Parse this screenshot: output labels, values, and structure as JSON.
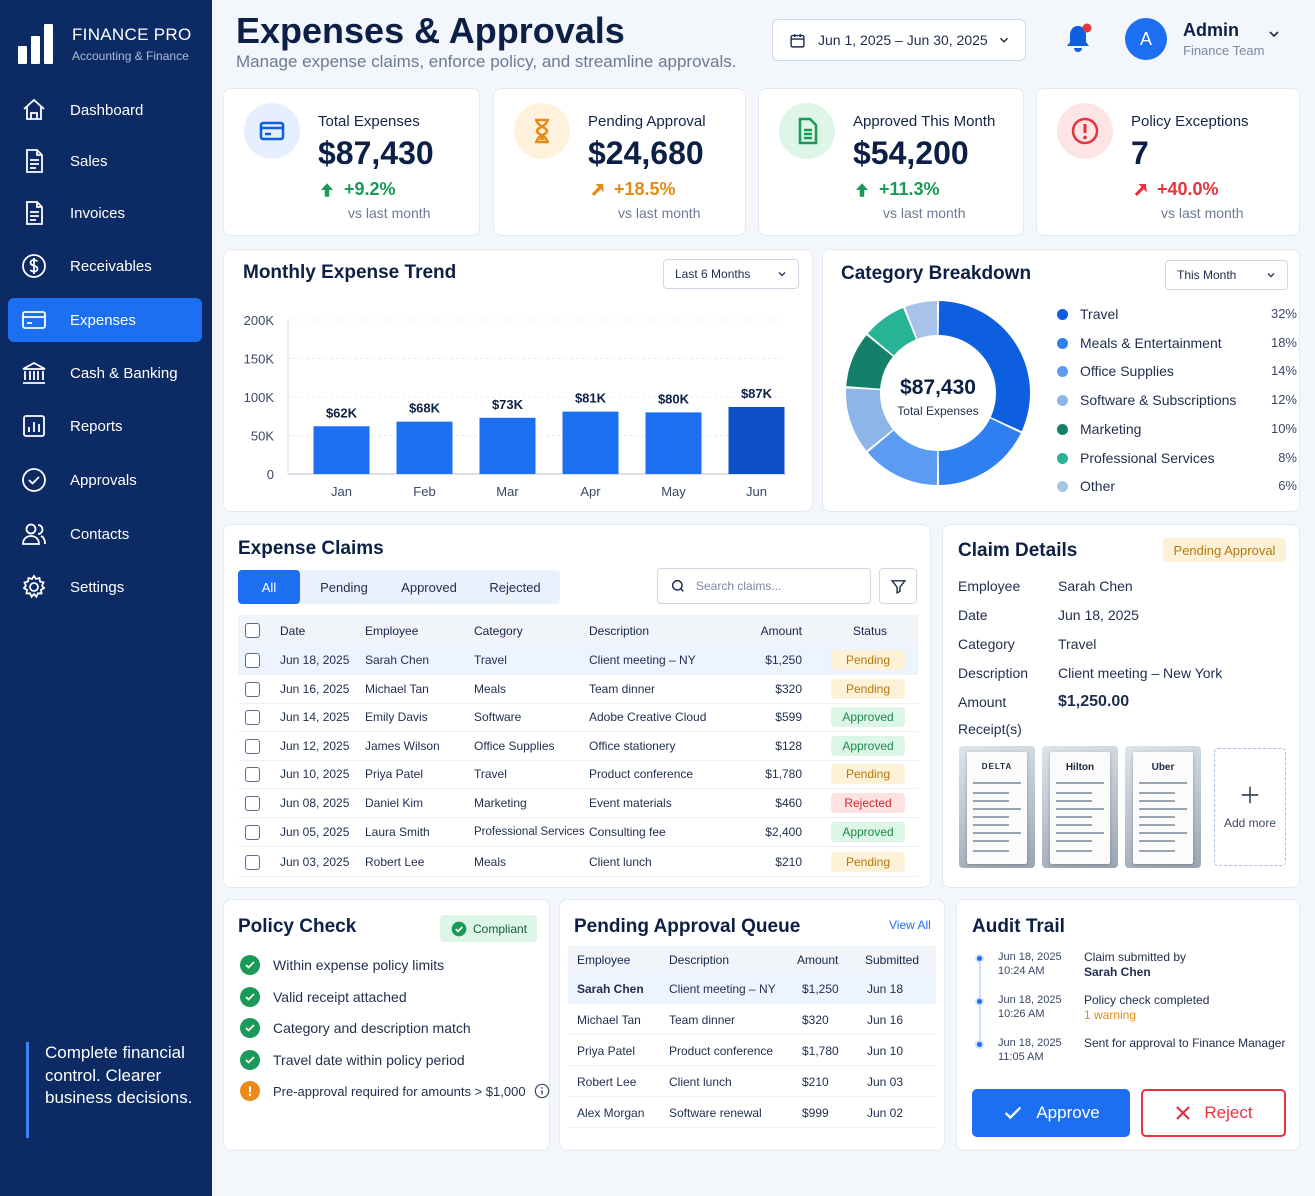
{
  "brand": {
    "name": "FINANCE PRO",
    "sub": "Accounting & Finance"
  },
  "nav": [
    {
      "label": "Dashboard",
      "icon": "home-icon"
    },
    {
      "label": "Sales",
      "icon": "document-icon"
    },
    {
      "label": "Invoices",
      "icon": "document-icon"
    },
    {
      "label": "Receivables",
      "icon": "dollar-circle-icon"
    },
    {
      "label": "Expenses",
      "icon": "credit-card-icon",
      "active": true
    },
    {
      "label": "Cash & Banking",
      "icon": "bank-icon"
    },
    {
      "label": "Reports",
      "icon": "bar-chart-icon"
    },
    {
      "label": "Approvals",
      "icon": "check-circle-icon"
    },
    {
      "label": "Contacts",
      "icon": "users-icon"
    },
    {
      "label": "Settings",
      "icon": "gear-icon"
    }
  ],
  "tagline": "Complete financial control. Clearer business decisions.",
  "header": {
    "title": "Expenses & Approvals",
    "subtitle": "Manage expense claims, enforce policy, and streamline approvals.",
    "date_range": "Jun 1, 2025 – Jun 30, 2025",
    "user_initial": "A",
    "user_name": "Admin",
    "user_role": "Finance Team"
  },
  "kpis": [
    {
      "label": "Total Expenses",
      "value": "$87,430",
      "change": "+9.2%",
      "vs": "vs last month",
      "color": "#1a9a56",
      "icon_bg": "#e6efff"
    },
    {
      "label": "Pending Approval",
      "value": "$24,680",
      "change": "+18.5%",
      "vs": "vs last month",
      "color": "#e58a12",
      "icon_bg": "#fff1dc"
    },
    {
      "label": "Approved This Month",
      "value": "$54,200",
      "change": "+11.3%",
      "vs": "vs last month",
      "color": "#1a9a56",
      "icon_bg": "#def6e8"
    },
    {
      "label": "Policy Exceptions",
      "value": "7",
      "change": "+40.0%",
      "vs": "vs last month",
      "color": "#e53340",
      "icon_bg": "#fde5e6"
    }
  ],
  "trend": {
    "title": "Monthly Expense Trend",
    "range": "Last 6 Months",
    "chart_data": {
      "type": "bar",
      "categories": [
        "Jan",
        "Feb",
        "Mar",
        "Apr",
        "May",
        "Jun"
      ],
      "values": [
        62,
        68,
        73,
        81,
        80,
        87
      ],
      "labels": [
        "$62K",
        "$68K",
        "$73K",
        "$81K",
        "$80K",
        "$87K"
      ],
      "yticks": [
        "200K",
        "150K",
        "100K",
        "50K",
        "0"
      ],
      "ylim": [
        0,
        200
      ]
    }
  },
  "breakdown": {
    "title": "Category Breakdown",
    "range": "This Month",
    "center_value": "$87,430",
    "center_label": "Total Expenses",
    "chart_data": {
      "type": "pie",
      "categories": [
        "Travel",
        "Meals & Entertainment",
        "Office Supplies",
        "Software & Subscriptions",
        "Marketing",
        "Professional Services",
        "Other"
      ],
      "values": [
        32,
        18,
        14,
        12,
        10,
        8,
        6
      ],
      "pct_labels": [
        "32%",
        "18%",
        "14%",
        "12%",
        "10%",
        "8%",
        "6%"
      ],
      "colors": [
        "#0d5fe0",
        "#2f7ff0",
        "#5b9cf2",
        "#8eb5e8",
        "#15806a",
        "#27b396",
        "#a8c3e8"
      ]
    }
  },
  "claims": {
    "title": "Expense Claims",
    "tabs": [
      "All",
      "Pending",
      "Approved",
      "Rejected"
    ],
    "search_placeholder": "Search claims...",
    "columns": [
      "Date",
      "Employee",
      "Category",
      "Description",
      "Amount",
      "Status"
    ],
    "rows": [
      {
        "date": "Jun 18, 2025",
        "employee": "Sarah Chen",
        "category": "Travel",
        "description": "Client meeting – NY",
        "amount": "$1,250",
        "status": "Pending"
      },
      {
        "date": "Jun 16, 2025",
        "employee": "Michael Tan",
        "category": "Meals",
        "description": "Team dinner",
        "amount": "$320",
        "status": "Pending"
      },
      {
        "date": "Jun 14, 2025",
        "employee": "Emily Davis",
        "category": "Software",
        "description": "Adobe Creative Cloud",
        "amount": "$599",
        "status": "Approved"
      },
      {
        "date": "Jun 12, 2025",
        "employee": "James Wilson",
        "category": "Office Supplies",
        "description": "Office stationery",
        "amount": "$128",
        "status": "Approved"
      },
      {
        "date": "Jun 10, 2025",
        "employee": "Priya Patel",
        "category": "Travel",
        "description": "Product conference",
        "amount": "$1,780",
        "status": "Pending"
      },
      {
        "date": "Jun 08, 2025",
        "employee": "Daniel Kim",
        "category": "Marketing",
        "description": "Event materials",
        "amount": "$460",
        "status": "Rejected"
      },
      {
        "date": "Jun 05, 2025",
        "employee": "Laura Smith",
        "category": "Professional Services",
        "description": "Consulting fee",
        "amount": "$2,400",
        "status": "Approved"
      },
      {
        "date": "Jun 03, 2025",
        "employee": "Robert Lee",
        "category": "Meals",
        "description": "Client lunch",
        "amount": "$210",
        "status": "Pending"
      }
    ]
  },
  "details": {
    "title": "Claim Details",
    "status": "Pending Approval",
    "fields": [
      {
        "label": "Employee",
        "value": "Sarah Chen"
      },
      {
        "label": "Date",
        "value": "Jun 18, 2025"
      },
      {
        "label": "Category",
        "value": "Travel"
      },
      {
        "label": "Description",
        "value": "Client meeting – New York"
      },
      {
        "label": "Amount",
        "value": "$1,250.00"
      }
    ],
    "receipts_label": "Receipt(s)",
    "receipts": [
      "DELTA",
      "Hilton",
      "Uber"
    ],
    "add_more": "Add more"
  },
  "policy": {
    "title": "Policy Check",
    "badge": "Compliant",
    "items": [
      {
        "text": "Within expense policy limits",
        "ok": true
      },
      {
        "text": "Valid receipt attached",
        "ok": true
      },
      {
        "text": "Category and description match",
        "ok": true
      },
      {
        "text": "Travel date within policy period",
        "ok": true
      },
      {
        "text": "Pre-approval required for amounts > $1,000",
        "ok": false
      }
    ]
  },
  "queue": {
    "title": "Pending Approval Queue",
    "view_all": "View All",
    "columns": [
      "Employee",
      "Description",
      "Amount",
      "Submitted"
    ],
    "rows": [
      {
        "employee": "Sarah Chen",
        "description": "Client meeting – NY",
        "amount": "$1,250",
        "submitted": "Jun 18"
      },
      {
        "employee": "Michael Tan",
        "description": "Team dinner",
        "amount": "$320",
        "submitted": "Jun 16"
      },
      {
        "employee": "Priya Patel",
        "description": "Product conference",
        "amount": "$1,780",
        "submitted": "Jun 10"
      },
      {
        "employee": "Robert Lee",
        "description": "Client lunch",
        "amount": "$210",
        "submitted": "Jun 03"
      },
      {
        "employee": "Alex Morgan",
        "description": "Software renewal",
        "amount": "$999",
        "submitted": "Jun 02"
      }
    ]
  },
  "audit": {
    "title": "Audit Trail",
    "events": [
      {
        "date": "Jun 18, 2025",
        "time": "10:24 AM",
        "text": "Claim submitted by",
        "text2": "Sarah Chen"
      },
      {
        "date": "Jun 18, 2025",
        "time": "10:26 AM",
        "text": "Policy check completed",
        "text2": "1 warning"
      },
      {
        "date": "Jun 18, 2025",
        "time": "11:05 AM",
        "text": "Sent for approval to Finance Manager",
        "text2": ""
      }
    ]
  },
  "actions": {
    "approve": "Approve",
    "reject": "Reject"
  }
}
